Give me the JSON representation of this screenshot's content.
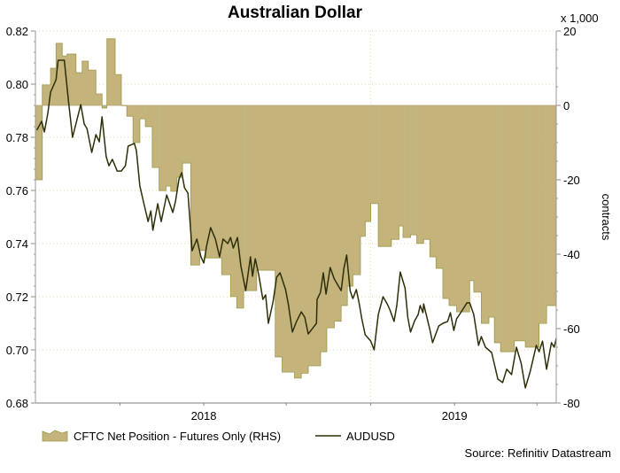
{
  "chart_data": {
    "type": "line+area",
    "title": "Australian Dollar",
    "right_axis_unit": "x 1,000",
    "right_axis_label": "contracts",
    "source": "Source: Refinitiv Datastream",
    "x_range": [
      "2017-05-01",
      "2019-05-29"
    ],
    "x_ticks": [
      "2017-09-01",
      "2018-01-01",
      "2018-05-01",
      "2018-09-01",
      "2019-01-01",
      "2019-05-01"
    ],
    "x_tick_labels": [
      {
        "date": "2018-01-01",
        "label": "2018"
      },
      {
        "date": "2019-01-01",
        "label": "2019"
      }
    ],
    "left_axis": {
      "range": [
        0.68,
        0.82
      ],
      "ticks": [
        "0.82",
        "0.80",
        "0.78",
        "0.76",
        "0.74",
        "0.72",
        "0.70",
        "0.68"
      ]
    },
    "right_axis": {
      "range": [
        -80,
        20
      ],
      "ticks": [
        "20",
        "0",
        "-20",
        "-40",
        "-60",
        "-80"
      ]
    },
    "grid": "horizontal dotted",
    "legend_position": "bottom-left",
    "colors": {
      "area": "#c4b47c",
      "area_edge": "#9c9a48",
      "line": "#2e2e08",
      "grid": "#e6d8a8"
    },
    "series": [
      {
        "name": "CFTC Net Position - Futures Only (RHS)",
        "type": "step-area",
        "axis": "right",
        "points": [
          [
            "2017-05-01",
            -20
          ],
          [
            "2017-05-11",
            5.5
          ],
          [
            "2017-05-23",
            10
          ],
          [
            "2017-05-31",
            16.7
          ],
          [
            "2017-06-09",
            13.3
          ],
          [
            "2017-06-16",
            13.8
          ],
          [
            "2017-06-29",
            8.8
          ],
          [
            "2017-07-08",
            11.9
          ],
          [
            "2017-07-17",
            9.5
          ],
          [
            "2017-07-28",
            3.1
          ],
          [
            "2017-08-06",
            -0.7
          ],
          [
            "2017-08-13",
            17.9
          ],
          [
            "2017-08-25",
            8.3
          ],
          [
            "2017-09-03",
            0
          ],
          [
            "2017-09-11",
            -2.9
          ],
          [
            "2017-09-20",
            -10
          ],
          [
            "2017-09-30",
            -3.6
          ],
          [
            "2017-10-08",
            -5.7
          ],
          [
            "2017-10-18",
            -16.7
          ],
          [
            "2017-10-28",
            -22.9
          ],
          [
            "2017-11-07",
            -21.7
          ],
          [
            "2017-11-14",
            -23.1
          ],
          [
            "2017-11-23",
            -19.3
          ],
          [
            "2017-12-01",
            -15.5
          ],
          [
            "2017-12-13",
            -42.9
          ],
          [
            "2017-12-26",
            -39
          ],
          [
            "2018-01-04",
            -41
          ],
          [
            "2018-01-27",
            -45.5
          ],
          [
            "2018-02-09",
            -51.4
          ],
          [
            "2018-02-18",
            -54.5
          ],
          [
            "2018-02-28",
            -49.8
          ],
          [
            "2018-03-19",
            -44.3
          ],
          [
            "2018-04-15",
            -67.6
          ],
          [
            "2018-04-25",
            -71.7
          ],
          [
            "2018-05-13",
            -73.3
          ],
          [
            "2018-05-23",
            -72
          ],
          [
            "2018-06-02",
            -70
          ],
          [
            "2018-06-20",
            -66.2
          ],
          [
            "2018-06-29",
            -59.8
          ],
          [
            "2018-07-10",
            -58
          ],
          [
            "2018-07-20",
            -53.8
          ],
          [
            "2018-07-29",
            -48.6
          ],
          [
            "2018-08-06",
            -45.5
          ],
          [
            "2018-08-17",
            -35.2
          ],
          [
            "2018-08-24",
            -31.2
          ],
          [
            "2018-09-01",
            -26.4
          ],
          [
            "2018-09-12",
            -37.9
          ],
          [
            "2018-10-01",
            -36
          ],
          [
            "2018-10-12",
            -32.4
          ],
          [
            "2018-10-18",
            -35.5
          ],
          [
            "2018-10-29",
            -34.8
          ],
          [
            "2018-11-07",
            -37.1
          ],
          [
            "2018-11-17",
            -36
          ],
          [
            "2018-11-26",
            -40.7
          ],
          [
            "2018-12-05",
            -43.8
          ],
          [
            "2018-12-15",
            -51.9
          ],
          [
            "2018-12-24",
            -53.8
          ],
          [
            "2019-01-04",
            -55.5
          ],
          [
            "2019-01-23",
            -47.1
          ],
          [
            "2019-01-29",
            -50.2
          ],
          [
            "2019-02-09",
            -58.6
          ],
          [
            "2019-02-20",
            -56.9
          ],
          [
            "2019-02-28",
            -63.8
          ],
          [
            "2019-03-09",
            -66.2
          ],
          [
            "2019-03-29",
            -63.3
          ],
          [
            "2019-04-14",
            -65
          ],
          [
            "2019-05-04",
            -58.6
          ],
          [
            "2019-05-15",
            -53.8
          ]
        ]
      },
      {
        "name": "AUDUSD",
        "type": "line",
        "axis": "left",
        "points": [
          [
            "2017-05-03",
            0.7827
          ],
          [
            "2017-05-10",
            0.786
          ],
          [
            "2017-05-14",
            0.782
          ],
          [
            "2017-05-19",
            0.789
          ],
          [
            "2017-05-23",
            0.797
          ],
          [
            "2017-05-31",
            0.8017
          ],
          [
            "2017-06-03",
            0.809
          ],
          [
            "2017-06-12",
            0.809
          ],
          [
            "2017-06-18",
            0.794
          ],
          [
            "2017-06-24",
            0.78
          ],
          [
            "2017-07-06",
            0.7923
          ],
          [
            "2017-07-11",
            0.785
          ],
          [
            "2017-07-15",
            0.7833
          ],
          [
            "2017-07-22",
            0.7743
          ],
          [
            "2017-07-28",
            0.781
          ],
          [
            "2017-08-02",
            0.7783
          ],
          [
            "2017-08-06",
            0.7877
          ],
          [
            "2017-08-12",
            0.7727
          ],
          [
            "2017-08-16",
            0.7693
          ],
          [
            "2017-08-21",
            0.7717
          ],
          [
            "2017-08-28",
            0.7673
          ],
          [
            "2017-09-03",
            0.7673
          ],
          [
            "2017-09-09",
            0.7693
          ],
          [
            "2017-09-13",
            0.7767
          ],
          [
            "2017-09-22",
            0.7777
          ],
          [
            "2017-09-25",
            0.775
          ],
          [
            "2017-09-30",
            0.7617
          ],
          [
            "2017-10-05",
            0.756
          ],
          [
            "2017-10-12",
            0.7483
          ],
          [
            "2017-10-16",
            0.7523
          ],
          [
            "2017-10-19",
            0.745
          ],
          [
            "2017-10-26",
            0.755
          ],
          [
            "2017-10-31",
            0.7483
          ],
          [
            "2017-11-08",
            0.7583
          ],
          [
            "2017-11-17",
            0.7517
          ],
          [
            "2017-11-21",
            0.756
          ],
          [
            "2017-11-26",
            0.7643
          ],
          [
            "2017-11-30",
            0.7667
          ],
          [
            "2017-12-04",
            0.761
          ],
          [
            "2017-12-09",
            0.759
          ],
          [
            "2017-12-15",
            0.7373
          ],
          [
            "2017-12-22",
            0.7417
          ],
          [
            "2017-12-28",
            0.735
          ],
          [
            "2018-01-01",
            0.7327
          ],
          [
            "2018-01-05",
            0.739
          ],
          [
            "2018-01-11",
            0.746
          ],
          [
            "2018-01-18",
            0.7417
          ],
          [
            "2018-01-24",
            0.735
          ],
          [
            "2018-01-29",
            0.7417
          ],
          [
            "2018-02-05",
            0.74
          ],
          [
            "2018-02-09",
            0.7423
          ],
          [
            "2018-02-13",
            0.7383
          ],
          [
            "2018-02-19",
            0.7423
          ],
          [
            "2018-02-24",
            0.7317
          ],
          [
            "2018-03-03",
            0.7223
          ],
          [
            "2018-03-10",
            0.735
          ],
          [
            "2018-03-13",
            0.7277
          ],
          [
            "2018-03-17",
            0.7343
          ],
          [
            "2018-03-22",
            0.7283
          ],
          [
            "2018-03-28",
            0.719
          ],
          [
            "2018-04-01",
            0.7207
          ],
          [
            "2018-04-05",
            0.71
          ],
          [
            "2018-04-12",
            0.7183
          ],
          [
            "2018-04-17",
            0.7273
          ],
          [
            "2018-04-22",
            0.729
          ],
          [
            "2018-04-30",
            0.7227
          ],
          [
            "2018-05-04",
            0.7173
          ],
          [
            "2018-05-10",
            0.7067
          ],
          [
            "2018-05-16",
            0.7107
          ],
          [
            "2018-05-23",
            0.7143
          ],
          [
            "2018-05-28",
            0.7123
          ],
          [
            "2018-06-02",
            0.706
          ],
          [
            "2018-06-09",
            0.7083
          ],
          [
            "2018-06-14",
            0.71
          ],
          [
            "2018-06-15",
            0.719
          ],
          [
            "2018-06-20",
            0.7217
          ],
          [
            "2018-06-24",
            0.729
          ],
          [
            "2018-06-28",
            0.721
          ],
          [
            "2018-07-04",
            0.731
          ],
          [
            "2018-07-10",
            0.7267
          ],
          [
            "2018-07-16",
            0.724
          ],
          [
            "2018-07-20",
            0.7223
          ],
          [
            "2018-07-24",
            0.7307
          ],
          [
            "2018-07-28",
            0.7357
          ],
          [
            "2018-08-02",
            0.7223
          ],
          [
            "2018-08-06",
            0.7193
          ],
          [
            "2018-08-11",
            0.7227
          ],
          [
            "2018-08-15",
            0.7177
          ],
          [
            "2018-08-19",
            0.7117
          ],
          [
            "2018-08-24",
            0.7057
          ],
          [
            "2018-09-01",
            0.7033
          ],
          [
            "2018-09-06",
            0.7
          ],
          [
            "2018-09-12",
            0.7133
          ],
          [
            "2018-09-19",
            0.72
          ],
          [
            "2018-09-25",
            0.7173
          ],
          [
            "2018-09-29",
            0.715
          ],
          [
            "2018-10-05",
            0.7107
          ],
          [
            "2018-10-09",
            0.7167
          ],
          [
            "2018-10-14",
            0.7293
          ],
          [
            "2018-10-21",
            0.7233
          ],
          [
            "2018-10-25",
            0.7123
          ],
          [
            "2018-10-29",
            0.7067
          ],
          [
            "2018-11-04",
            0.711
          ],
          [
            "2018-11-09",
            0.7133
          ],
          [
            "2018-11-12",
            0.7167
          ],
          [
            "2018-11-16",
            0.714
          ],
          [
            "2018-11-17",
            0.7173
          ],
          [
            "2018-11-26",
            0.7077
          ],
          [
            "2018-11-30",
            0.7027
          ],
          [
            "2018-12-09",
            0.709
          ],
          [
            "2018-12-15",
            0.71
          ],
          [
            "2018-12-22",
            0.7107
          ],
          [
            "2018-12-26",
            0.714
          ],
          [
            "2018-12-31",
            0.7073
          ],
          [
            "2019-01-04",
            0.7117
          ],
          [
            "2019-01-10",
            0.714
          ],
          [
            "2019-01-19",
            0.7177
          ],
          [
            "2019-01-23",
            0.7177
          ],
          [
            "2019-01-29",
            0.7133
          ],
          [
            "2019-02-05",
            0.7017
          ],
          [
            "2019-02-09",
            0.705
          ],
          [
            "2019-02-15",
            0.701
          ],
          [
            "2019-02-24",
            0.699
          ],
          [
            "2019-03-05",
            0.689
          ],
          [
            "2019-03-12",
            0.6877
          ],
          [
            "2019-03-18",
            0.6927
          ],
          [
            "2019-03-25",
            0.6907
          ],
          [
            "2019-04-01",
            0.701
          ],
          [
            "2019-04-08",
            0.695
          ],
          [
            "2019-04-14",
            0.6857
          ],
          [
            "2019-04-21",
            0.6917
          ],
          [
            "2019-04-30",
            0.7017
          ],
          [
            "2019-05-04",
            0.6993
          ],
          [
            "2019-05-09",
            0.7033
          ],
          [
            "2019-05-15",
            0.6927
          ],
          [
            "2019-05-22",
            0.7027
          ],
          [
            "2019-05-26",
            0.701
          ],
          [
            "2019-05-29",
            0.7043
          ]
        ]
      }
    ]
  }
}
